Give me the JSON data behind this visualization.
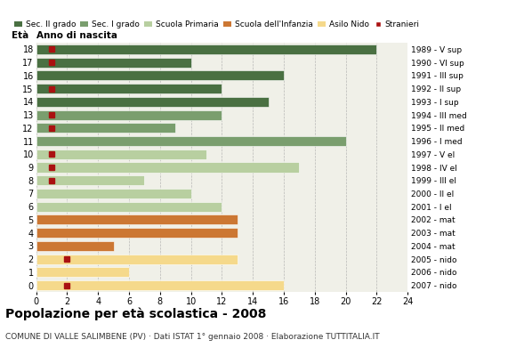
{
  "ages": [
    0,
    1,
    2,
    3,
    4,
    5,
    6,
    7,
    8,
    9,
    10,
    11,
    12,
    13,
    14,
    15,
    16,
    17,
    18
  ],
  "years": [
    "2007 - nido",
    "2006 - nido",
    "2005 - nido",
    "2004 - mat",
    "2003 - mat",
    "2002 - mat",
    "2001 - I el",
    "2000 - II el",
    "1999 - III el",
    "1998 - IV el",
    "1997 - V el",
    "1996 - I med",
    "1995 - II med",
    "1994 - III med",
    "1993 - I sup",
    "1992 - II sup",
    "1991 - III sup",
    "1990 - VI sup",
    "1989 - V sup"
  ],
  "values": [
    16,
    6,
    13,
    5,
    13,
    13,
    12,
    10,
    7,
    17,
    11,
    20,
    9,
    12,
    15,
    12,
    16,
    10,
    22
  ],
  "stranieri_flags": [
    1,
    0,
    1,
    0,
    0,
    0,
    0,
    0,
    1,
    1,
    1,
    0,
    1,
    1,
    0,
    1,
    0,
    1,
    1
  ],
  "stranieri_x": [
    2,
    0,
    2,
    0,
    0,
    0,
    0,
    0,
    1,
    1,
    1,
    0,
    1,
    1,
    0,
    1,
    0,
    1,
    1
  ],
  "bar_colors": [
    "#f5d98b",
    "#f5d98b",
    "#f5d98b",
    "#cc7733",
    "#cc7733",
    "#cc7733",
    "#b8cfa0",
    "#b8cfa0",
    "#b8cfa0",
    "#b8cfa0",
    "#b8cfa0",
    "#7a9e6e",
    "#7a9e6e",
    "#7a9e6e",
    "#4a7042",
    "#4a7042",
    "#4a7042",
    "#4a7042",
    "#4a7042"
  ],
  "stranieri_color": "#aa1111",
  "legend_labels": [
    "Sec. II grado",
    "Sec. I grado",
    "Scuola Primaria",
    "Scuola dell'Infanzia",
    "Asilo Nido",
    "Stranieri"
  ],
  "legend_colors": [
    "#4a7042",
    "#7a9e6e",
    "#b8cfa0",
    "#cc7733",
    "#f5d98b",
    "#aa1111"
  ],
  "title": "Popolazione per età scolastica - 2008",
  "subtitle": "COMUNE DI VALLE SALIMBENE (PV) · Dati ISTAT 1° gennaio 2008 · Elaborazione TUTTITALIA.IT",
  "xlabel_eta": "Età",
  "xlabel_anno": "Anno di nascita",
  "xlim": [
    0,
    24
  ],
  "xticks": [
    0,
    2,
    4,
    6,
    8,
    10,
    12,
    14,
    16,
    18,
    20,
    22,
    24
  ],
  "bg_color": "#ffffff",
  "plot_bg": "#f0f0e8"
}
